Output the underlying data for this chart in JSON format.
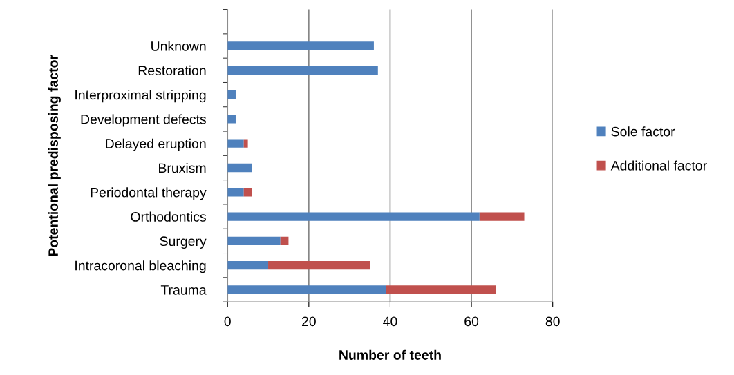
{
  "chart_data": {
    "type": "bar",
    "orientation": "horizontal",
    "stacked": true,
    "xlabel": "Number of teeth",
    "ylabel": "Potentional predisposing factor",
    "categories": [
      null,
      "Unknown",
      "Restoration",
      "Interproximal stripping",
      "Development defects",
      "Delayed eruption",
      "Bruxism",
      "Periodontal therapy",
      "Orthodontics",
      "Surgery",
      "Intracoronal bleaching",
      "Trauma"
    ],
    "series": [
      {
        "name": "Sole factor",
        "color": "#4f81bd",
        "values": [
          null,
          36,
          37,
          2,
          2,
          4,
          6,
          4,
          62,
          13,
          10,
          39
        ]
      },
      {
        "name": "Additional factor",
        "color": "#c0504d",
        "values": [
          null,
          null,
          null,
          null,
          null,
          1,
          null,
          2,
          11,
          2,
          25,
          27
        ]
      }
    ],
    "xlim": [
      0,
      80
    ],
    "xticks": [
      0,
      20,
      40,
      60,
      80
    ],
    "grid": "x",
    "legend": "right"
  }
}
